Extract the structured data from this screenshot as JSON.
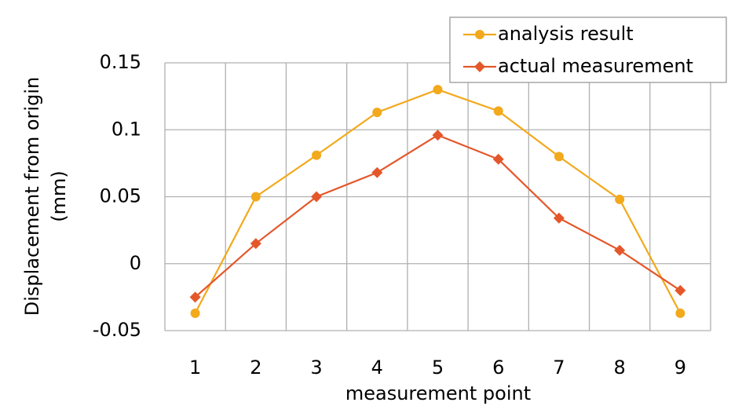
{
  "chart_data": {
    "type": "line",
    "xlabel": "measurement point",
    "ylabel": [
      "Displacement from origin",
      "(mm)"
    ],
    "categories": [
      "1",
      "2",
      "3",
      "4",
      "5",
      "6",
      "7",
      "8",
      "9"
    ],
    "series": [
      {
        "name": "analysis result",
        "color": "#f2a91c",
        "marker": "circle",
        "values": [
          -0.037,
          0.05,
          0.081,
          0.113,
          0.13,
          0.114,
          0.08,
          0.048,
          -0.037
        ]
      },
      {
        "name": "actual measurement",
        "color": "#e4572a",
        "marker": "diamond",
        "values": [
          -0.025,
          0.015,
          0.05,
          0.068,
          0.096,
          0.078,
          0.034,
          0.01,
          -0.02
        ]
      }
    ],
    "ylim": [
      -0.05,
      0.15
    ],
    "yticks": [
      -0.05,
      0,
      0.05,
      0.1,
      0.15
    ],
    "grid": true
  }
}
